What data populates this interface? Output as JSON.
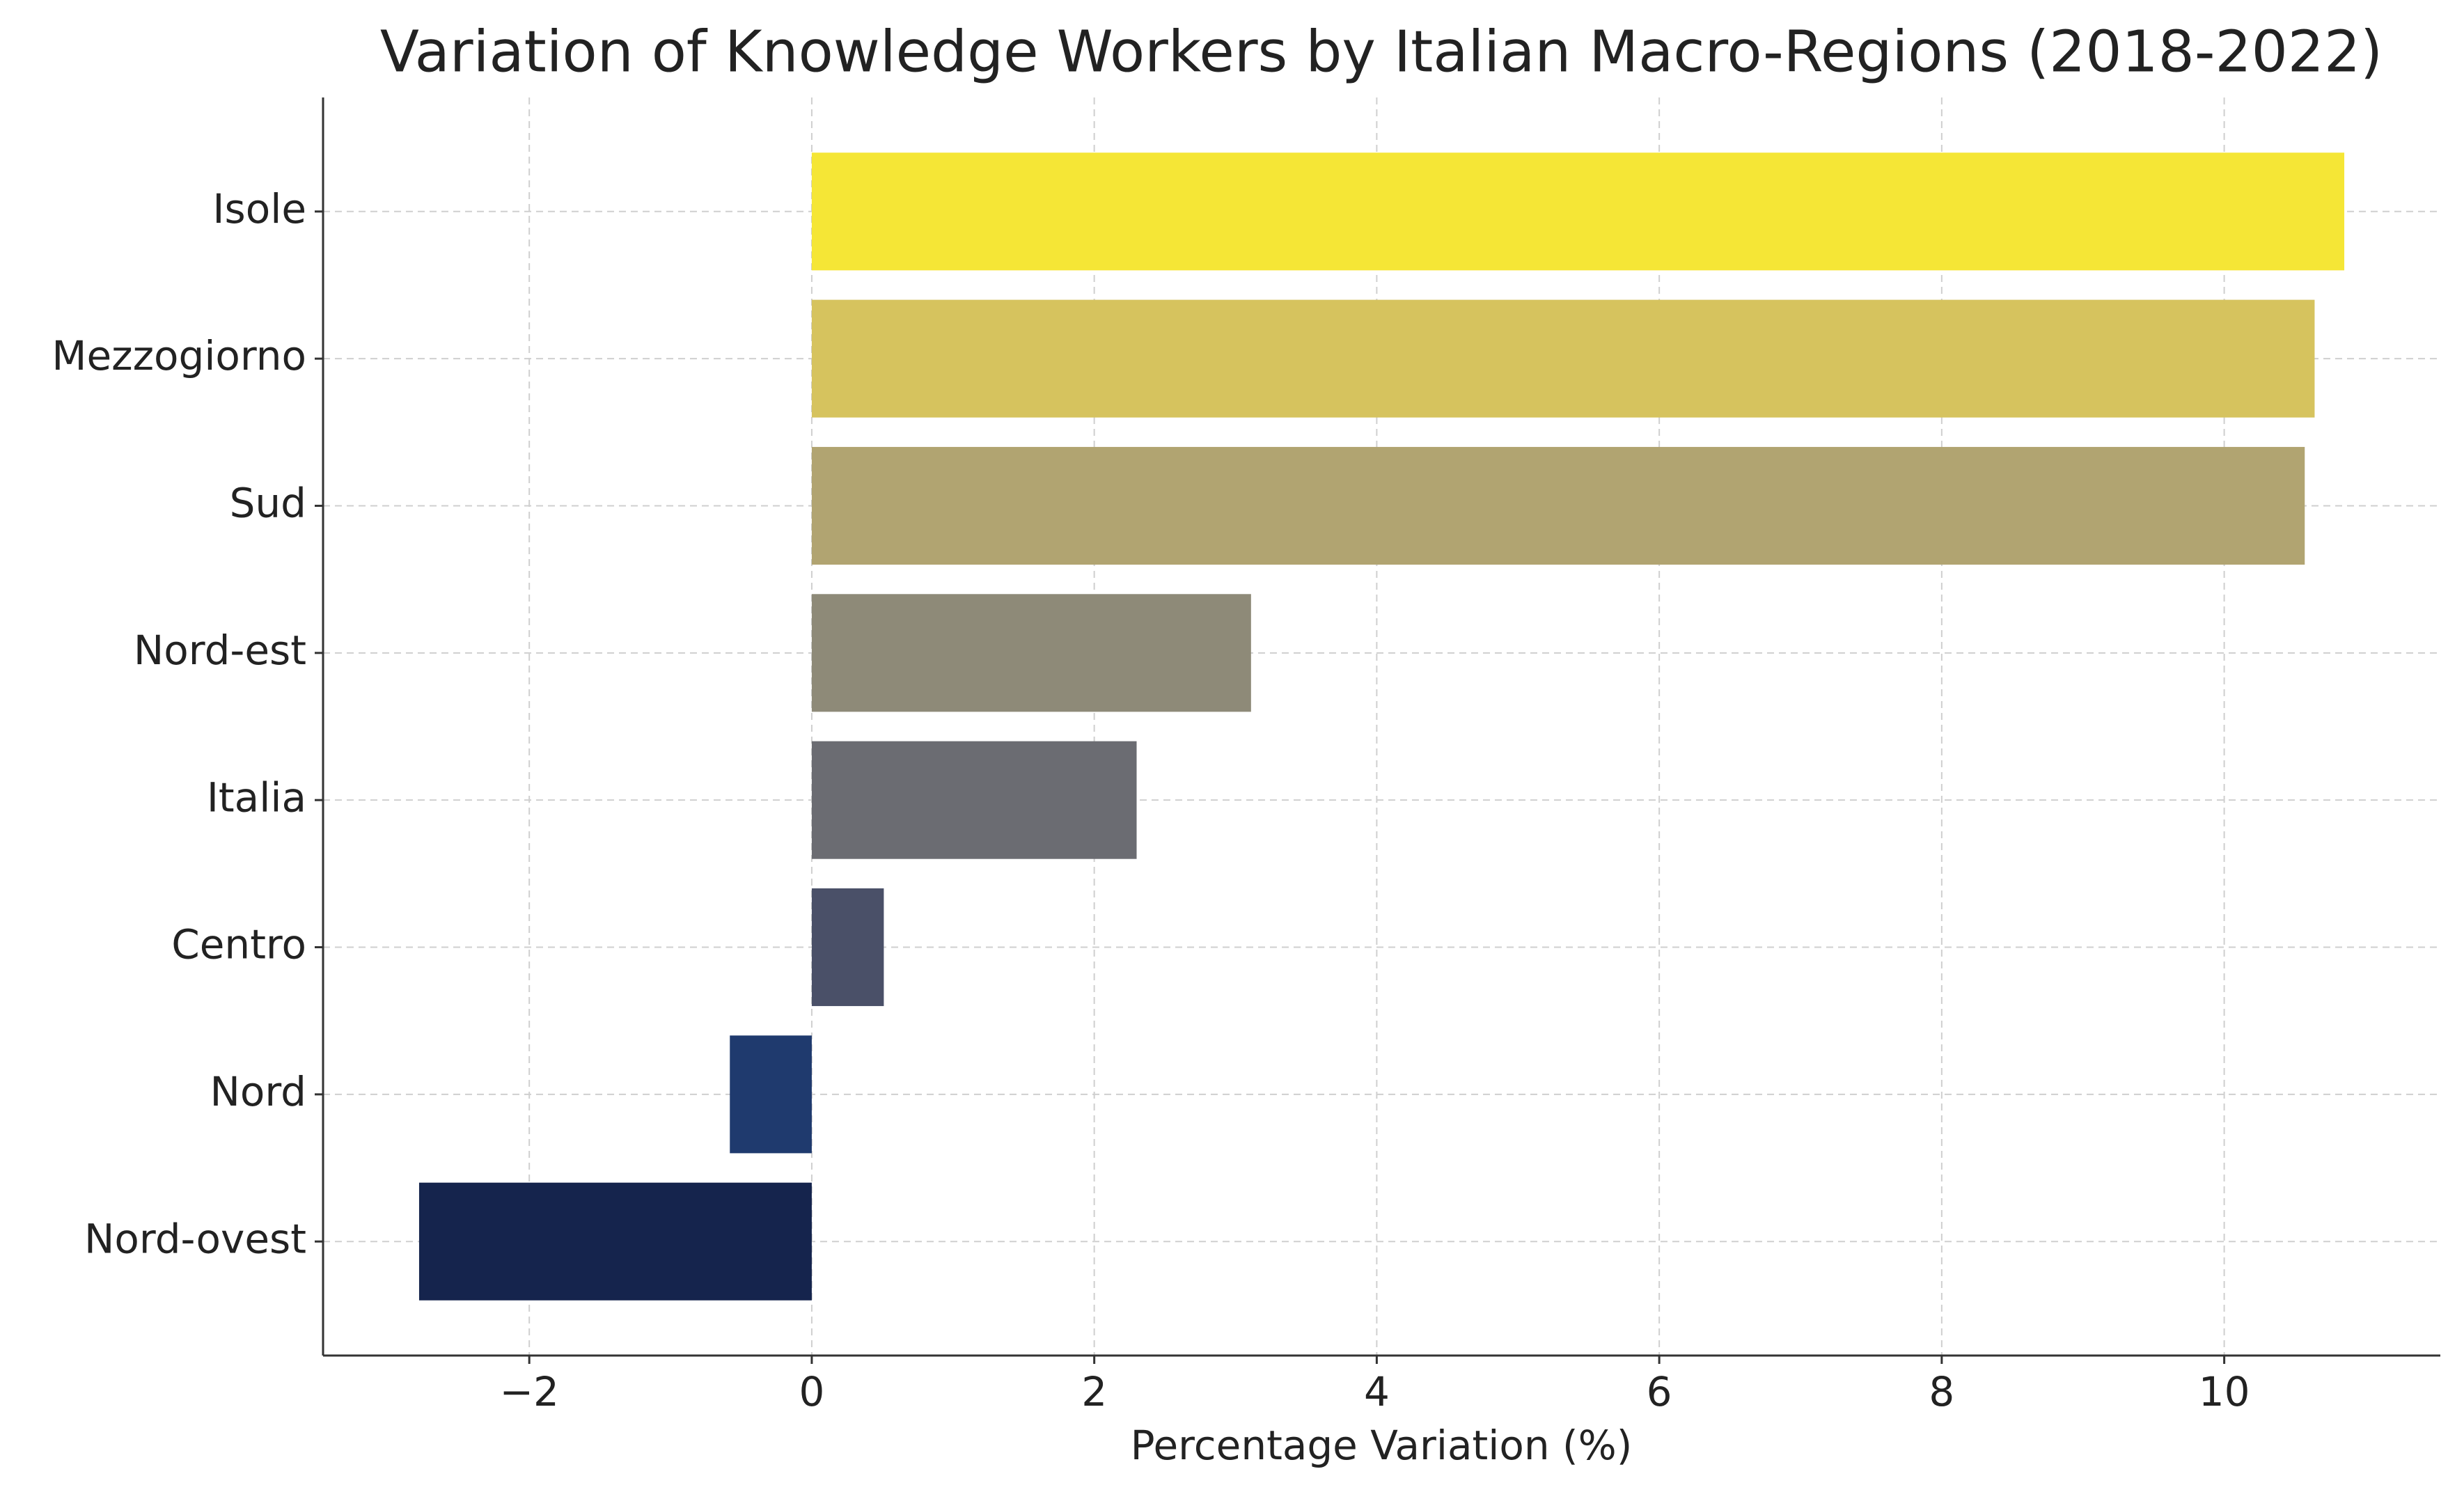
{
  "chart_data": {
    "type": "barh",
    "title": "Variation of Knowledge Workers by Italian Macro-Regions (2018-2022)",
    "x_label": "Percentage Variation (%)",
    "categories": [
      "Nord-ovest",
      "Nord",
      "Centro",
      "Italia",
      "Nord-est",
      "Sud",
      "Mezzogiorno",
      "Isole"
    ],
    "values": [
      -2.78,
      -0.58,
      0.51,
      2.3,
      3.11,
      10.57,
      10.64,
      10.85
    ],
    "colors": [
      "#15244d",
      "#1f3a6e",
      "#4a5068",
      "#6b6c72",
      "#8e8a78",
      "#b1a471",
      "#d6c35e",
      "#f5e636"
    ],
    "xlim": [
      -3.46,
      11.53
    ],
    "xticks": [
      {
        "value": -2,
        "label": "−2"
      },
      0,
      2,
      4,
      6,
      8,
      10
    ],
    "grid": true
  }
}
